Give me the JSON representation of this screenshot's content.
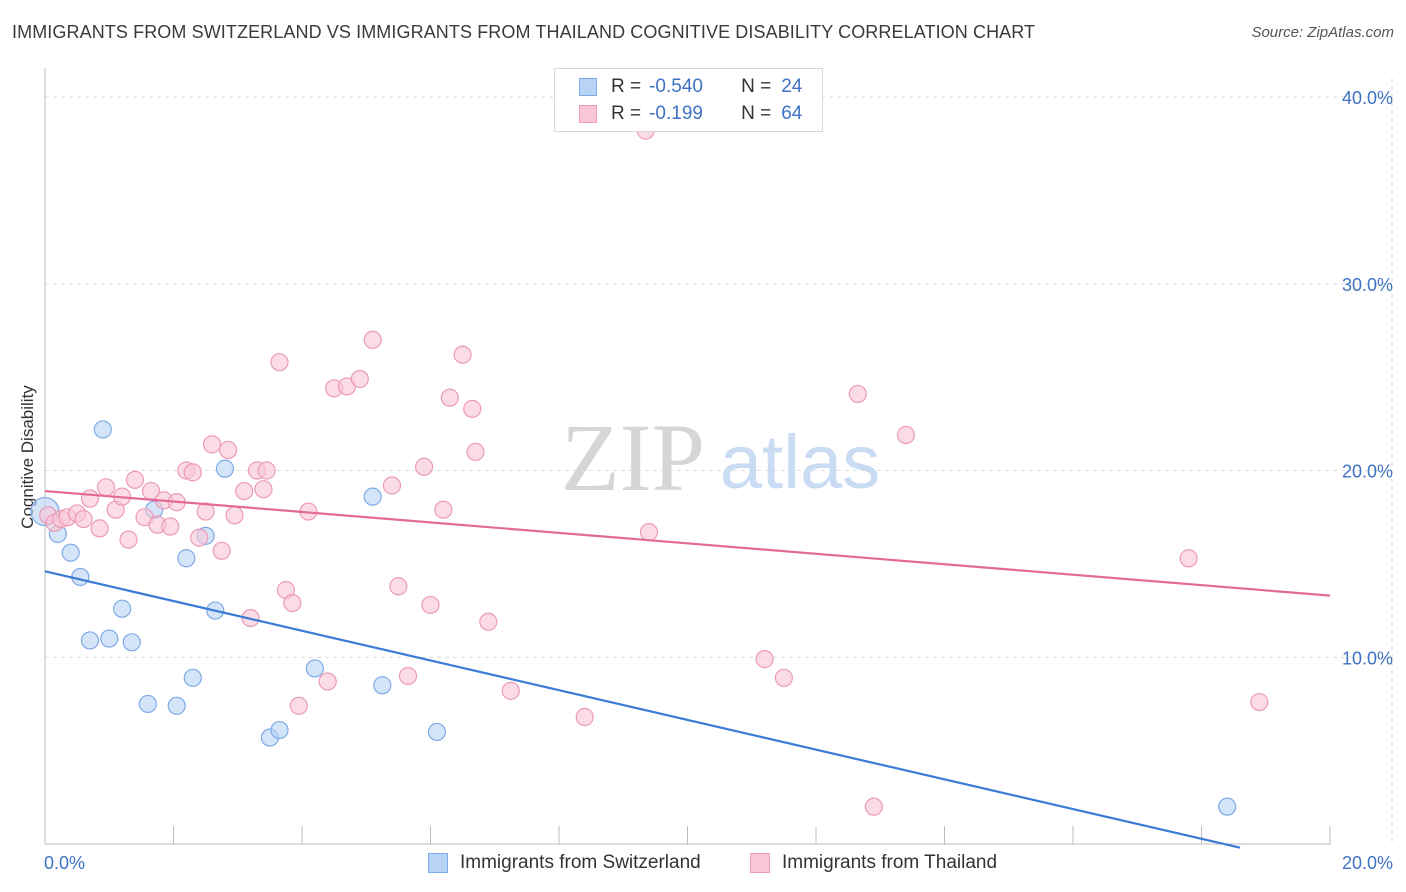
{
  "title": "IMMIGRANTS FROM SWITZERLAND VS IMMIGRANTS FROM THAILAND COGNITIVE DISABILITY CORRELATION CHART",
  "source": "Source: ZipAtlas.com",
  "watermark": {
    "zip": "ZIP",
    "atlas": "atlas"
  },
  "colors": {
    "switzerland_fill": "#b9d3f5",
    "switzerland_stroke": "#7eaae6",
    "switzerland_line": "#3a7bd5",
    "thailand_fill": "#f8c6d6",
    "thailand_stroke": "#ec9ab5",
    "thailand_line": "#e3699a",
    "value_text": "#3f72c4",
    "grid": "#dcdcdc"
  },
  "legend": {
    "rows": [
      {
        "r_label": "R =",
        "r_value": "-0.540",
        "n_label": "N =",
        "n_value": "24"
      },
      {
        "r_label": "R =",
        "r_value": "-0.199",
        "n_label": "N =",
        "n_value": "64"
      }
    ]
  },
  "chart_data": {
    "type": "scatter",
    "title": "IMMIGRANTS FROM SWITZERLAND VS IMMIGRANTS FROM THAILAND COGNITIVE DISABILITY CORRELATION CHART",
    "xlabel": "",
    "ylabel": "Cognitive Disability",
    "xlim": [
      0,
      20
    ],
    "ylim": [
      0,
      40
    ],
    "x_tick_labels": [
      "0.0%",
      "20.0%"
    ],
    "y_ticks": [
      10,
      20,
      30,
      40
    ],
    "y_tick_labels": [
      "10.0%",
      "20.0%",
      "30.0%",
      "40.0%"
    ],
    "grid": true,
    "legend_position": "top-center",
    "series": [
      {
        "name": "Immigrants from Switzerland",
        "points": [
          [
            0.0,
            17.8
          ],
          [
            0.2,
            16.6
          ],
          [
            0.4,
            15.6
          ],
          [
            0.55,
            14.3
          ],
          [
            0.7,
            10.9
          ],
          [
            0.9,
            22.2
          ],
          [
            1.0,
            11.0
          ],
          [
            1.2,
            12.6
          ],
          [
            1.35,
            10.8
          ],
          [
            1.6,
            7.5
          ],
          [
            1.7,
            17.9
          ],
          [
            2.05,
            7.4
          ],
          [
            2.2,
            15.3
          ],
          [
            2.3,
            8.9
          ],
          [
            2.5,
            16.5
          ],
          [
            2.65,
            12.5
          ],
          [
            2.8,
            20.1
          ],
          [
            3.5,
            5.7
          ],
          [
            3.65,
            6.1
          ],
          [
            4.2,
            9.4
          ],
          [
            5.1,
            18.6
          ],
          [
            5.25,
            8.5
          ],
          [
            6.1,
            6.0
          ],
          [
            18.4,
            2.0
          ]
        ],
        "trend": {
          "x": [
            0,
            18.6
          ],
          "y": [
            14.6,
            -0.2
          ]
        }
      },
      {
        "name": "Immigrants from Thailand",
        "points": [
          [
            0.05,
            17.6
          ],
          [
            0.15,
            17.2
          ],
          [
            0.25,
            17.4
          ],
          [
            0.35,
            17.5
          ],
          [
            0.5,
            17.7
          ],
          [
            0.6,
            17.4
          ],
          [
            0.7,
            18.5
          ],
          [
            0.85,
            16.9
          ],
          [
            0.95,
            19.1
          ],
          [
            1.1,
            17.9
          ],
          [
            1.2,
            18.6
          ],
          [
            1.3,
            16.3
          ],
          [
            1.4,
            19.5
          ],
          [
            1.55,
            17.5
          ],
          [
            1.65,
            18.9
          ],
          [
            1.75,
            17.1
          ],
          [
            1.85,
            18.4
          ],
          [
            1.95,
            17.0
          ],
          [
            2.05,
            18.3
          ],
          [
            2.2,
            20.0
          ],
          [
            2.3,
            19.9
          ],
          [
            2.4,
            16.4
          ],
          [
            2.5,
            17.8
          ],
          [
            2.6,
            21.4
          ],
          [
            2.75,
            15.7
          ],
          [
            2.85,
            21.1
          ],
          [
            2.95,
            17.6
          ],
          [
            3.1,
            18.9
          ],
          [
            3.2,
            12.1
          ],
          [
            3.3,
            20.0
          ],
          [
            3.4,
            19.0
          ],
          [
            3.45,
            20.0
          ],
          [
            3.65,
            25.8
          ],
          [
            3.75,
            13.6
          ],
          [
            3.85,
            12.9
          ],
          [
            3.95,
            7.4
          ],
          [
            4.1,
            17.8
          ],
          [
            4.4,
            8.7
          ],
          [
            4.5,
            24.4
          ],
          [
            4.7,
            24.5
          ],
          [
            4.9,
            24.9
          ],
          [
            5.1,
            27.0
          ],
          [
            5.4,
            19.2
          ],
          [
            5.5,
            13.8
          ],
          [
            5.65,
            9.0
          ],
          [
            5.9,
            20.2
          ],
          [
            6.0,
            12.8
          ],
          [
            6.2,
            17.9
          ],
          [
            6.3,
            23.9
          ],
          [
            6.5,
            26.2
          ],
          [
            6.65,
            23.3
          ],
          [
            6.7,
            21.0
          ],
          [
            6.9,
            11.9
          ],
          [
            7.25,
            8.2
          ],
          [
            8.4,
            6.8
          ],
          [
            9.4,
            16.7
          ],
          [
            9.35,
            38.2
          ],
          [
            11.2,
            9.9
          ],
          [
            11.5,
            8.9
          ],
          [
            12.65,
            24.1
          ],
          [
            12.9,
            2.0
          ],
          [
            13.4,
            21.9
          ],
          [
            17.8,
            15.3
          ],
          [
            18.9,
            7.6
          ]
        ],
        "trend": {
          "x": [
            0,
            20
          ],
          "y": [
            18.9,
            13.3
          ]
        }
      }
    ]
  },
  "bottom_legend": [
    {
      "label": "Immigrants from Switzerland"
    },
    {
      "label": "Immigrants from Thailand"
    }
  ]
}
